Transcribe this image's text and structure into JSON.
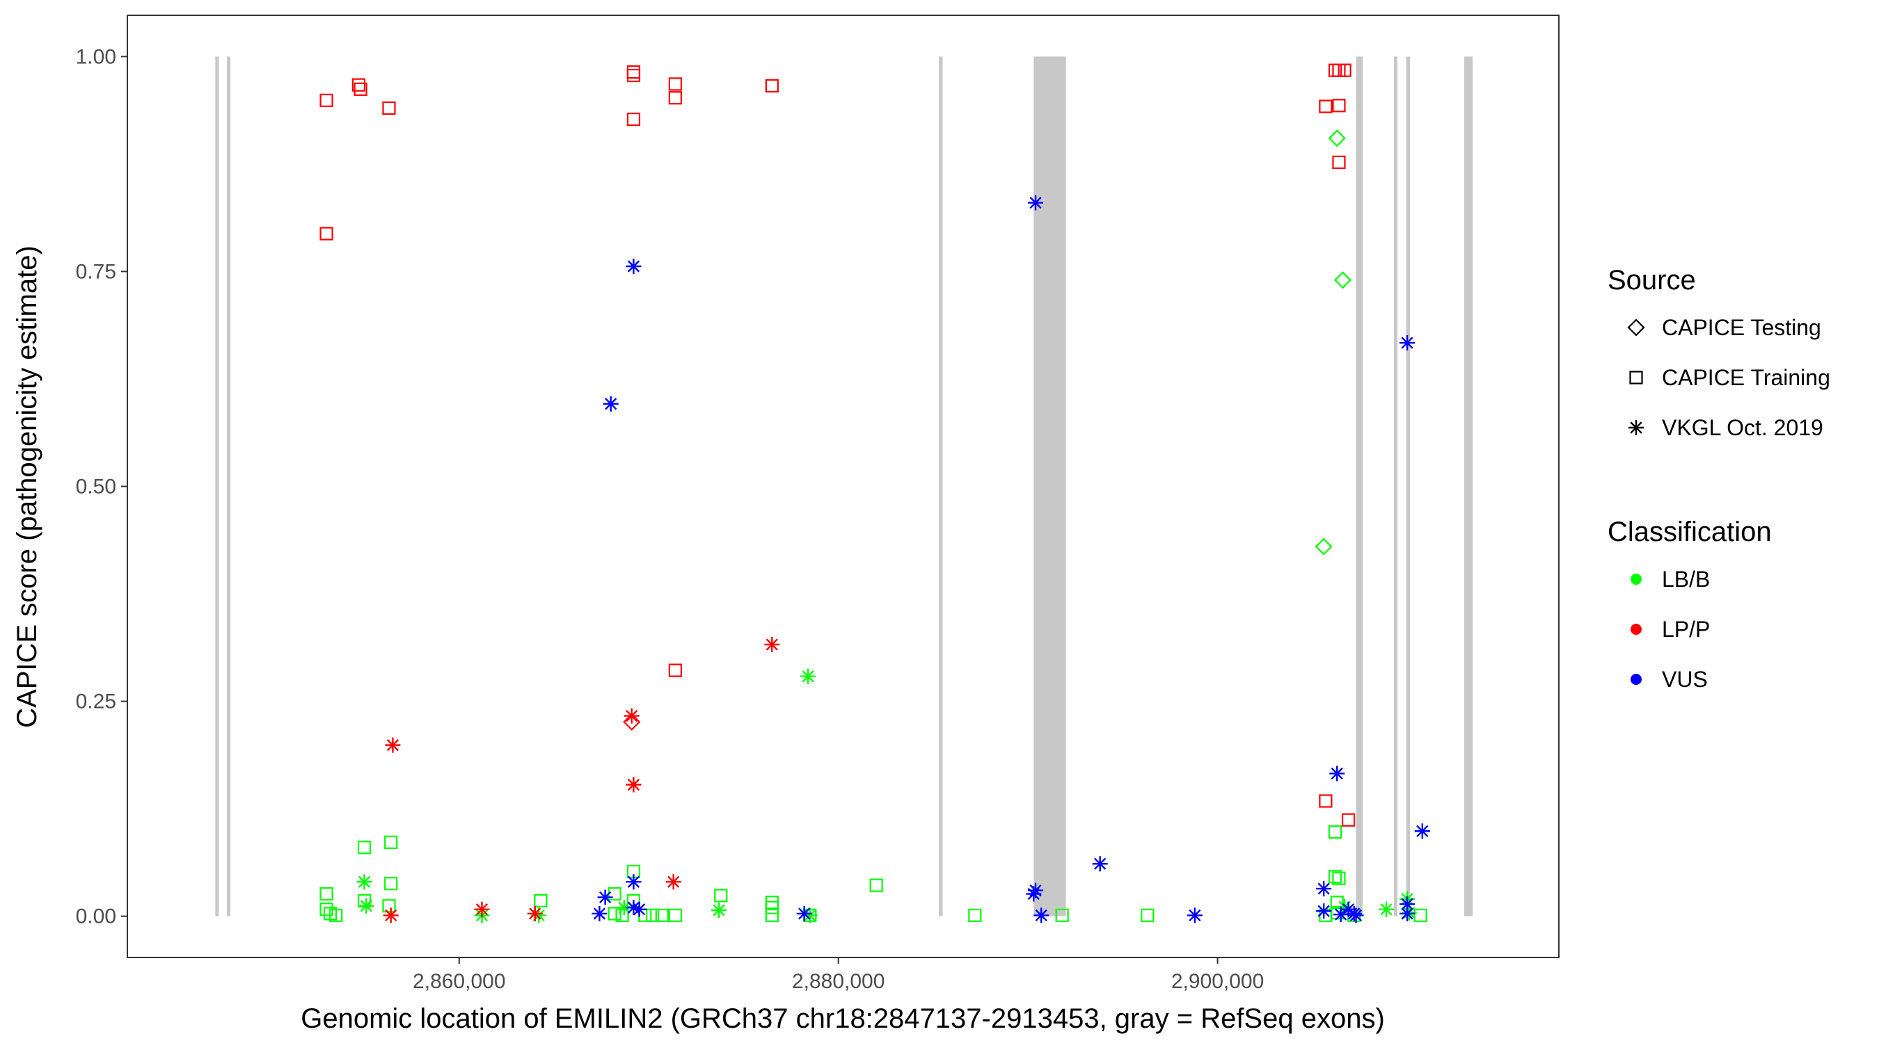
{
  "chart_data": {
    "type": "scatter",
    "xlabel": "Genomic location of EMILIN2 (GRCh37 chr18:2847137-2913453, gray = RefSeq exons)",
    "ylabel": "CAPICE score (pathogenicity estimate)",
    "xlim": [
      2842500,
      2918000
    ],
    "ylim": [
      -0.048,
      1.048
    ],
    "x_ticks": [
      2860000,
      2880000,
      2900000
    ],
    "x_tick_labels": [
      "2,860,000",
      "2,880,000",
      "2,900,000"
    ],
    "y_ticks": [
      0,
      0.25,
      0.5,
      0.75,
      1.0
    ],
    "y_tick_labels": [
      "0.00",
      "0.25",
      "0.50",
      "0.75",
      "1.00"
    ],
    "grid": false,
    "legend_position": "right",
    "exons": [
      [
        2847137,
        2847250
      ],
      [
        2847750,
        2847870
      ],
      [
        2885300,
        2885500
      ],
      [
        2890300,
        2892000
      ],
      [
        2907300,
        2907650
      ],
      [
        2909300,
        2909430
      ],
      [
        2909950,
        2910150
      ],
      [
        2913000,
        2913453
      ]
    ],
    "legends": [
      {
        "title": "Source",
        "entries": [
          {
            "label": "CAPICE Testing",
            "shape": "diamond"
          },
          {
            "label": "CAPICE Training",
            "shape": "square"
          },
          {
            "label": "VKGL Oct. 2019",
            "shape": "asterisk"
          }
        ]
      },
      {
        "title": "Classification",
        "entries": [
          {
            "label": "LB/B",
            "color": "#00ff00"
          },
          {
            "label": "LP/P",
            "color": "#ff0000"
          },
          {
            "label": "VUS",
            "color": "#0000ff"
          }
        ]
      }
    ],
    "series": [
      {
        "source": "CAPICE Training",
        "class": "LP/P",
        "points": [
          [
            2853000,
            0.949
          ],
          [
            2853000,
            0.794
          ],
          [
            2854700,
            0.967
          ],
          [
            2854800,
            0.962
          ],
          [
            2856300,
            0.94
          ],
          [
            2869200,
            0.978
          ],
          [
            2869200,
            0.982
          ],
          [
            2869200,
            0.927
          ],
          [
            2871400,
            0.968
          ],
          [
            2871400,
            0.952
          ],
          [
            2876500,
            0.966
          ],
          [
            2871400,
            0.286
          ],
          [
            2905700,
            0.942
          ],
          [
            2906200,
            0.984
          ],
          [
            2906400,
            0.984
          ],
          [
            2906700,
            0.984
          ],
          [
            2906400,
            0.943
          ],
          [
            2906400,
            0.877
          ],
          [
            2905700,
            0.134
          ],
          [
            2906900,
            0.112
          ]
        ]
      },
      {
        "source": "CAPICE Training",
        "class": "LB/B",
        "points": [
          [
            2853000,
            0.026
          ],
          [
            2853000,
            0.008
          ],
          [
            2853200,
            0.003
          ],
          [
            2853500,
            0.001
          ],
          [
            2855000,
            0.08
          ],
          [
            2855000,
            0.018
          ],
          [
            2856400,
            0.086
          ],
          [
            2856400,
            0.038
          ],
          [
            2856300,
            0.012
          ],
          [
            2864300,
            0.018
          ],
          [
            2868200,
            0.026
          ],
          [
            2868200,
            0.003
          ],
          [
            2868600,
            0.001
          ],
          [
            2869200,
            0.052
          ],
          [
            2869200,
            0.018
          ],
          [
            2869800,
            0.001
          ],
          [
            2870200,
            0.001
          ],
          [
            2870700,
            0.001
          ],
          [
            2871400,
            0.001
          ],
          [
            2873800,
            0.024
          ],
          [
            2876500,
            0.016
          ],
          [
            2876500,
            0.01
          ],
          [
            2876500,
            0.001
          ],
          [
            2878500,
            0.001
          ],
          [
            2882000,
            0.036
          ],
          [
            2887200,
            0.001
          ],
          [
            2891800,
            0.001
          ],
          [
            2896300,
            0.001
          ],
          [
            2905700,
            0.001
          ],
          [
            2906200,
            0.098
          ],
          [
            2906200,
            0.046
          ],
          [
            2906400,
            0.044
          ],
          [
            2906300,
            0.016
          ],
          [
            2906300,
            0.004
          ],
          [
            2907200,
            0.001
          ],
          [
            2910700,
            0.001
          ]
        ]
      },
      {
        "source": "CAPICE Testing",
        "class": "LB/B",
        "points": [
          [
            2906300,
            0.905
          ],
          [
            2906600,
            0.74
          ],
          [
            2905600,
            0.43
          ]
        ]
      },
      {
        "source": "CAPICE Testing",
        "class": "LP/P",
        "points": [
          [
            2869100,
            0.226
          ]
        ]
      },
      {
        "source": "VKGL Oct. 2019",
        "class": "LB/B",
        "points": [
          [
            2855000,
            0.04
          ],
          [
            2855100,
            0.012
          ],
          [
            2861200,
            0.001
          ],
          [
            2864200,
            0.001
          ],
          [
            2868700,
            0.01
          ],
          [
            2873700,
            0.007
          ],
          [
            2878400,
            0.279
          ],
          [
            2878500,
            0.001
          ],
          [
            2906700,
            0.011
          ],
          [
            2908900,
            0.008
          ],
          [
            2910000,
            0.02
          ],
          [
            2910100,
            0.004
          ]
        ]
      },
      {
        "source": "VKGL Oct. 2019",
        "class": "LP/P",
        "points": [
          [
            2856500,
            0.199
          ],
          [
            2856400,
            0.001
          ],
          [
            2861200,
            0.008
          ],
          [
            2864000,
            0.003
          ],
          [
            2869100,
            0.233
          ],
          [
            2869200,
            0.153
          ],
          [
            2871300,
            0.04
          ],
          [
            2876500,
            0.316
          ]
        ]
      },
      {
        "source": "VKGL Oct. 2019",
        "class": "VUS",
        "points": [
          [
            2868000,
            0.596
          ],
          [
            2869200,
            0.756
          ],
          [
            2890400,
            0.83
          ],
          [
            2867700,
            0.022
          ],
          [
            2867400,
            0.003
          ],
          [
            2869200,
            0.04
          ],
          [
            2869200,
            0.01
          ],
          [
            2869500,
            0.008
          ],
          [
            2878200,
            0.003
          ],
          [
            2890300,
            0.026
          ],
          [
            2890400,
            0.03
          ],
          [
            2890700,
            0.001
          ],
          [
            2893800,
            0.061
          ],
          [
            2898800,
            0.001
          ],
          [
            2905600,
            0.032
          ],
          [
            2905600,
            0.006
          ],
          [
            2906300,
            0.166
          ],
          [
            2906500,
            0.002
          ],
          [
            2906900,
            0.008
          ],
          [
            2907200,
            0.003
          ],
          [
            2907300,
            0.001
          ],
          [
            2910000,
            0.667
          ],
          [
            2910800,
            0.099
          ],
          [
            2910000,
            0.014
          ],
          [
            2910000,
            0.003
          ]
        ]
      }
    ]
  }
}
